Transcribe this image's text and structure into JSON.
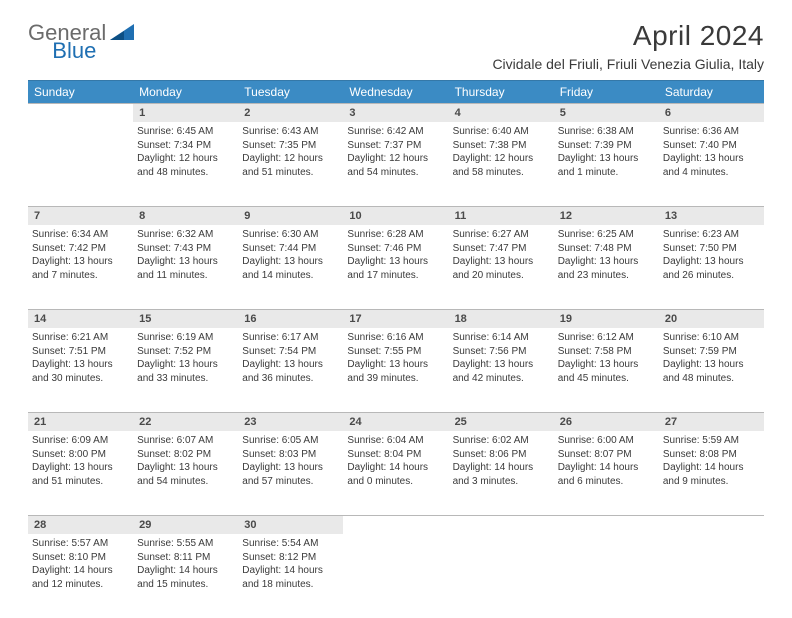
{
  "brand": {
    "part1": "General",
    "part2": "Blue"
  },
  "title": "April 2024",
  "location": "Cividale del Friuli, Friuli Venezia Giulia, Italy",
  "colors": {
    "header_bg": "#3b8bc4",
    "header_text": "#ffffff",
    "daynum_bg": "#e9e9e9",
    "daynum_border": "#b8b8b8",
    "body_text": "#3a3a3a",
    "logo_gray": "#6b6b6b",
    "logo_blue": "#1f6fb2"
  },
  "week_labels": [
    "Sunday",
    "Monday",
    "Tuesday",
    "Wednesday",
    "Thursday",
    "Friday",
    "Saturday"
  ],
  "weeks": [
    [
      null,
      {
        "n": "1",
        "sr": "Sunrise: 6:45 AM",
        "ss": "Sunset: 7:34 PM",
        "d1": "Daylight: 12 hours",
        "d2": "and 48 minutes."
      },
      {
        "n": "2",
        "sr": "Sunrise: 6:43 AM",
        "ss": "Sunset: 7:35 PM",
        "d1": "Daylight: 12 hours",
        "d2": "and 51 minutes."
      },
      {
        "n": "3",
        "sr": "Sunrise: 6:42 AM",
        "ss": "Sunset: 7:37 PM",
        "d1": "Daylight: 12 hours",
        "d2": "and 54 minutes."
      },
      {
        "n": "4",
        "sr": "Sunrise: 6:40 AM",
        "ss": "Sunset: 7:38 PM",
        "d1": "Daylight: 12 hours",
        "d2": "and 58 minutes."
      },
      {
        "n": "5",
        "sr": "Sunrise: 6:38 AM",
        "ss": "Sunset: 7:39 PM",
        "d1": "Daylight: 13 hours",
        "d2": "and 1 minute."
      },
      {
        "n": "6",
        "sr": "Sunrise: 6:36 AM",
        "ss": "Sunset: 7:40 PM",
        "d1": "Daylight: 13 hours",
        "d2": "and 4 minutes."
      }
    ],
    [
      {
        "n": "7",
        "sr": "Sunrise: 6:34 AM",
        "ss": "Sunset: 7:42 PM",
        "d1": "Daylight: 13 hours",
        "d2": "and 7 minutes."
      },
      {
        "n": "8",
        "sr": "Sunrise: 6:32 AM",
        "ss": "Sunset: 7:43 PM",
        "d1": "Daylight: 13 hours",
        "d2": "and 11 minutes."
      },
      {
        "n": "9",
        "sr": "Sunrise: 6:30 AM",
        "ss": "Sunset: 7:44 PM",
        "d1": "Daylight: 13 hours",
        "d2": "and 14 minutes."
      },
      {
        "n": "10",
        "sr": "Sunrise: 6:28 AM",
        "ss": "Sunset: 7:46 PM",
        "d1": "Daylight: 13 hours",
        "d2": "and 17 minutes."
      },
      {
        "n": "11",
        "sr": "Sunrise: 6:27 AM",
        "ss": "Sunset: 7:47 PM",
        "d1": "Daylight: 13 hours",
        "d2": "and 20 minutes."
      },
      {
        "n": "12",
        "sr": "Sunrise: 6:25 AM",
        "ss": "Sunset: 7:48 PM",
        "d1": "Daylight: 13 hours",
        "d2": "and 23 minutes."
      },
      {
        "n": "13",
        "sr": "Sunrise: 6:23 AM",
        "ss": "Sunset: 7:50 PM",
        "d1": "Daylight: 13 hours",
        "d2": "and 26 minutes."
      }
    ],
    [
      {
        "n": "14",
        "sr": "Sunrise: 6:21 AM",
        "ss": "Sunset: 7:51 PM",
        "d1": "Daylight: 13 hours",
        "d2": "and 30 minutes."
      },
      {
        "n": "15",
        "sr": "Sunrise: 6:19 AM",
        "ss": "Sunset: 7:52 PM",
        "d1": "Daylight: 13 hours",
        "d2": "and 33 minutes."
      },
      {
        "n": "16",
        "sr": "Sunrise: 6:17 AM",
        "ss": "Sunset: 7:54 PM",
        "d1": "Daylight: 13 hours",
        "d2": "and 36 minutes."
      },
      {
        "n": "17",
        "sr": "Sunrise: 6:16 AM",
        "ss": "Sunset: 7:55 PM",
        "d1": "Daylight: 13 hours",
        "d2": "and 39 minutes."
      },
      {
        "n": "18",
        "sr": "Sunrise: 6:14 AM",
        "ss": "Sunset: 7:56 PM",
        "d1": "Daylight: 13 hours",
        "d2": "and 42 minutes."
      },
      {
        "n": "19",
        "sr": "Sunrise: 6:12 AM",
        "ss": "Sunset: 7:58 PM",
        "d1": "Daylight: 13 hours",
        "d2": "and 45 minutes."
      },
      {
        "n": "20",
        "sr": "Sunrise: 6:10 AM",
        "ss": "Sunset: 7:59 PM",
        "d1": "Daylight: 13 hours",
        "d2": "and 48 minutes."
      }
    ],
    [
      {
        "n": "21",
        "sr": "Sunrise: 6:09 AM",
        "ss": "Sunset: 8:00 PM",
        "d1": "Daylight: 13 hours",
        "d2": "and 51 minutes."
      },
      {
        "n": "22",
        "sr": "Sunrise: 6:07 AM",
        "ss": "Sunset: 8:02 PM",
        "d1": "Daylight: 13 hours",
        "d2": "and 54 minutes."
      },
      {
        "n": "23",
        "sr": "Sunrise: 6:05 AM",
        "ss": "Sunset: 8:03 PM",
        "d1": "Daylight: 13 hours",
        "d2": "and 57 minutes."
      },
      {
        "n": "24",
        "sr": "Sunrise: 6:04 AM",
        "ss": "Sunset: 8:04 PM",
        "d1": "Daylight: 14 hours",
        "d2": "and 0 minutes."
      },
      {
        "n": "25",
        "sr": "Sunrise: 6:02 AM",
        "ss": "Sunset: 8:06 PM",
        "d1": "Daylight: 14 hours",
        "d2": "and 3 minutes."
      },
      {
        "n": "26",
        "sr": "Sunrise: 6:00 AM",
        "ss": "Sunset: 8:07 PM",
        "d1": "Daylight: 14 hours",
        "d2": "and 6 minutes."
      },
      {
        "n": "27",
        "sr": "Sunrise: 5:59 AM",
        "ss": "Sunset: 8:08 PM",
        "d1": "Daylight: 14 hours",
        "d2": "and 9 minutes."
      }
    ],
    [
      {
        "n": "28",
        "sr": "Sunrise: 5:57 AM",
        "ss": "Sunset: 8:10 PM",
        "d1": "Daylight: 14 hours",
        "d2": "and 12 minutes."
      },
      {
        "n": "29",
        "sr": "Sunrise: 5:55 AM",
        "ss": "Sunset: 8:11 PM",
        "d1": "Daylight: 14 hours",
        "d2": "and 15 minutes."
      },
      {
        "n": "30",
        "sr": "Sunrise: 5:54 AM",
        "ss": "Sunset: 8:12 PM",
        "d1": "Daylight: 14 hours",
        "d2": "and 18 minutes."
      },
      null,
      null,
      null,
      null
    ]
  ]
}
